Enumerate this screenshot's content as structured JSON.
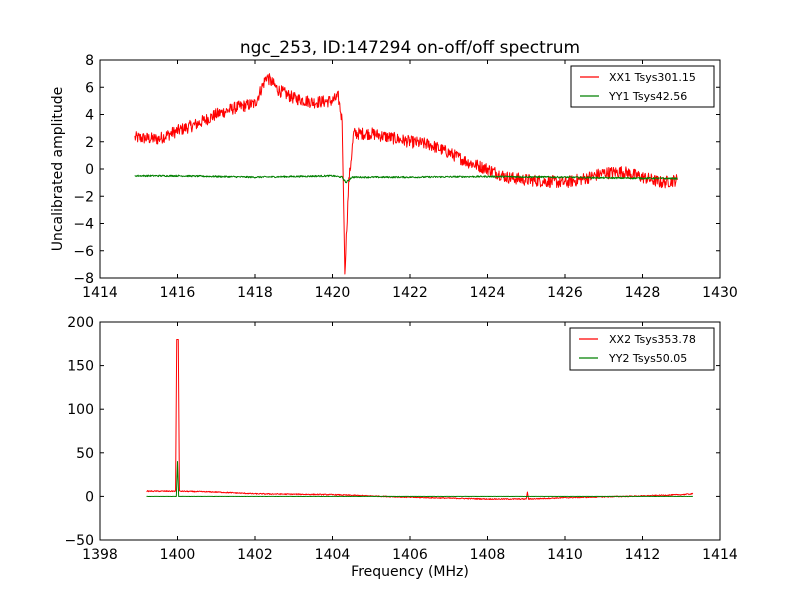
{
  "chart_data": [
    {
      "type": "line",
      "title": "ngc_253, ID:147294 on-off/off spectrum",
      "xlabel": "",
      "ylabel": "Uncalibrated amplitude",
      "xlim": [
        1414,
        1430
      ],
      "ylim": [
        -8,
        8
      ],
      "xticks": [
        1414,
        1416,
        1418,
        1420,
        1422,
        1424,
        1426,
        1428,
        1430
      ],
      "yticks": [
        -8,
        -6,
        -4,
        -2,
        0,
        2,
        4,
        6,
        8
      ],
      "xtick_labels": [
        "1414",
        "1416",
        "1418",
        "1420",
        "1422",
        "1424",
        "1426",
        "1428",
        "1430"
      ],
      "ytick_labels": [
        "−8",
        "−6",
        "−4",
        "−2",
        "0",
        "2",
        "4",
        "6",
        "8"
      ],
      "grid": false,
      "legend_position": "top-right",
      "series": [
        {
          "name": "XX1 Tsys301.15",
          "color": "#ff0000",
          "noise": 0.45,
          "points": [
            [
              1414.9,
              2.3
            ],
            [
              1415.5,
              2.2
            ],
            [
              1416.0,
              2.8
            ],
            [
              1416.5,
              3.3
            ],
            [
              1417.0,
              4.0
            ],
            [
              1417.5,
              4.5
            ],
            [
              1418.0,
              4.8
            ],
            [
              1418.3,
              6.8
            ],
            [
              1418.6,
              5.8
            ],
            [
              1419.0,
              5.2
            ],
            [
              1419.5,
              4.9
            ],
            [
              1420.0,
              5.0
            ],
            [
              1420.15,
              5.3
            ],
            [
              1420.25,
              3.5
            ],
            [
              1420.32,
              -7.5
            ],
            [
              1420.42,
              -1.0
            ],
            [
              1420.55,
              2.6
            ],
            [
              1421.0,
              2.6
            ],
            [
              1421.5,
              2.3
            ],
            [
              1422.0,
              2.0
            ],
            [
              1422.5,
              1.8
            ],
            [
              1423.0,
              1.2
            ],
            [
              1423.5,
              0.5
            ],
            [
              1424.0,
              0.0
            ],
            [
              1424.5,
              -0.6
            ],
            [
              1425.0,
              -0.8
            ],
            [
              1425.5,
              -0.9
            ],
            [
              1426.0,
              -1.0
            ],
            [
              1426.5,
              -0.7
            ],
            [
              1427.0,
              -0.3
            ],
            [
              1427.5,
              -0.2
            ],
            [
              1428.0,
              -0.6
            ],
            [
              1428.5,
              -1.0
            ],
            [
              1428.9,
              -0.8
            ]
          ]
        },
        {
          "name": "YY1 Tsys42.56",
          "color": "#008000",
          "noise": 0.06,
          "points": [
            [
              1414.9,
              -0.5
            ],
            [
              1416.0,
              -0.5
            ],
            [
              1418.0,
              -0.6
            ],
            [
              1420.0,
              -0.5
            ],
            [
              1420.25,
              -0.6
            ],
            [
              1420.35,
              -1.0
            ],
            [
              1420.5,
              -0.6
            ],
            [
              1422.0,
              -0.6
            ],
            [
              1424.0,
              -0.55
            ],
            [
              1426.0,
              -0.6
            ],
            [
              1427.0,
              -0.65
            ],
            [
              1428.9,
              -0.7
            ]
          ]
        }
      ]
    },
    {
      "type": "line",
      "title": "",
      "xlabel": "Frequency (MHz)",
      "ylabel": "",
      "xlim": [
        1398,
        1414
      ],
      "ylim": [
        -50,
        200
      ],
      "xticks": [
        1398,
        1400,
        1402,
        1404,
        1406,
        1408,
        1410,
        1412,
        1414
      ],
      "yticks": [
        -50,
        0,
        50,
        100,
        150,
        200
      ],
      "xtick_labels": [
        "1398",
        "1400",
        "1402",
        "1404",
        "1406",
        "1408",
        "1410",
        "1412",
        "1414"
      ],
      "ytick_labels": [
        "−50",
        "0",
        "50",
        "100",
        "150",
        "200"
      ],
      "grid": false,
      "legend_position": "top-right",
      "series": [
        {
          "name": "XX2 Tsys353.78",
          "color": "#ff0000",
          "noise": 0.6,
          "points": [
            [
              1399.2,
              6
            ],
            [
              1399.95,
              6
            ],
            [
              1399.98,
              180
            ],
            [
              1400.02,
              180
            ],
            [
              1400.05,
              6
            ],
            [
              1401.0,
              5
            ],
            [
              1402.0,
              3
            ],
            [
              1403.0,
              2.5
            ],
            [
              1404.0,
              2
            ],
            [
              1405.0,
              0.5
            ],
            [
              1406.0,
              -1
            ],
            [
              1407.0,
              -2
            ],
            [
              1408.0,
              -3
            ],
            [
              1409.0,
              -3
            ],
            [
              1409.03,
              5
            ],
            [
              1409.06,
              -3
            ],
            [
              1410.0,
              -1.5
            ],
            [
              1411.0,
              -0.5
            ],
            [
              1412.0,
              0.5
            ],
            [
              1413.0,
              2
            ],
            [
              1413.3,
              3
            ]
          ]
        },
        {
          "name": "YY2 Tsys50.05",
          "color": "#008000",
          "noise": 0.1,
          "points": [
            [
              1399.2,
              0
            ],
            [
              1399.97,
              0
            ],
            [
              1400.0,
              40
            ],
            [
              1400.03,
              0
            ],
            [
              1406.0,
              0
            ],
            [
              1408.0,
              0
            ],
            [
              1409.0,
              0
            ],
            [
              1410.0,
              0
            ],
            [
              1413.3,
              0
            ]
          ]
        }
      ]
    }
  ]
}
